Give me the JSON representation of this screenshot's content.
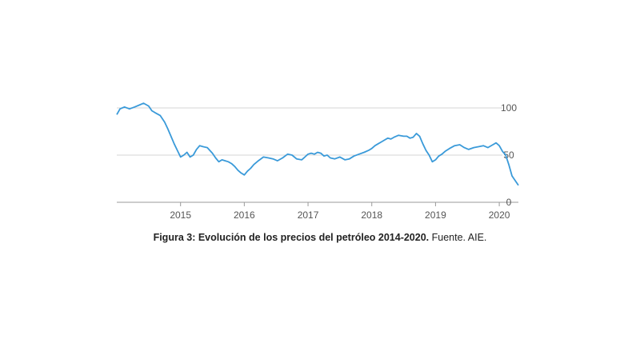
{
  "caption": {
    "bold": "Figura 3: Evolución de los precios del petróleo 2014-2020.",
    "normal": " Fuente. AIE."
  },
  "chart_data": {
    "type": "line",
    "title": "",
    "xlabel": "",
    "ylabel": "",
    "xlim": [
      2014.0,
      2020.3
    ],
    "ylim": [
      0,
      100
    ],
    "yticks": [
      "100",
      "50",
      "0"
    ],
    "xticks": [
      "2015",
      "2016",
      "2017",
      "2018",
      "2019",
      "2020"
    ],
    "grid": "horizontal",
    "colors": {
      "line": "#3a9ad9",
      "grid": "#d6d6d6",
      "axis": "#9a9a9a"
    },
    "series": [
      {
        "x": [
          2014.0,
          2014.05,
          2014.12,
          2014.2,
          2014.28,
          2014.35,
          2014.42,
          2014.5,
          2014.55,
          2014.6,
          2014.68,
          2014.75,
          2014.8,
          2014.85,
          2014.9,
          2014.95,
          2015.0,
          2015.05,
          2015.1,
          2015.15,
          2015.2,
          2015.25,
          2015.3,
          2015.35,
          2015.42,
          2015.5,
          2015.55,
          2015.6,
          2015.65,
          2015.7,
          2015.75,
          2015.8,
          2015.85,
          2015.9,
          2015.95,
          2016.0,
          2016.05,
          2016.1,
          2016.15,
          2016.22,
          2016.3,
          2016.38,
          2016.45,
          2016.52,
          2016.6,
          2016.68,
          2016.75,
          2016.82,
          2016.9,
          2016.95,
          2017.0,
          2017.05,
          2017.1,
          2017.15,
          2017.2,
          2017.25,
          2017.3,
          2017.35,
          2017.42,
          2017.5,
          2017.58,
          2017.65,
          2017.72,
          2017.8,
          2017.88,
          2017.95,
          2018.0,
          2018.05,
          2018.1,
          2018.15,
          2018.2,
          2018.25,
          2018.3,
          2018.35,
          2018.42,
          2018.5,
          2018.55,
          2018.6,
          2018.65,
          2018.7,
          2018.75,
          2018.8,
          2018.85,
          2018.9,
          2018.95,
          2019.0,
          2019.05,
          2019.1,
          2019.15,
          2019.22,
          2019.3,
          2019.38,
          2019.45,
          2019.52,
          2019.6,
          2019.68,
          2019.75,
          2019.82,
          2019.9,
          2019.95,
          2020.0,
          2020.05,
          2020.1,
          2020.15,
          2020.2,
          2020.25,
          2020.3
        ],
        "y": [
          93,
          99,
          101,
          99,
          101,
          103,
          105,
          102,
          97,
          95,
          92,
          85,
          78,
          70,
          62,
          55,
          48,
          50,
          53,
          48,
          50,
          56,
          60,
          59,
          58,
          52,
          47,
          43,
          45,
          44,
          43,
          41,
          38,
          34,
          31,
          29,
          33,
          36,
          40,
          44,
          48,
          47,
          46,
          44,
          47,
          51,
          50,
          46,
          45,
          48,
          51,
          52,
          51,
          53,
          52,
          49,
          50,
          47,
          46,
          48,
          45,
          46,
          49,
          51,
          53,
          55,
          57,
          60,
          62,
          64,
          66,
          68,
          67,
          69,
          71,
          70,
          70,
          68,
          69,
          73,
          70,
          62,
          55,
          50,
          43,
          45,
          49,
          51,
          54,
          57,
          60,
          61,
          58,
          56,
          58,
          59,
          60,
          58,
          61,
          63,
          60,
          54,
          50,
          40,
          28,
          23,
          18
        ]
      }
    ]
  }
}
